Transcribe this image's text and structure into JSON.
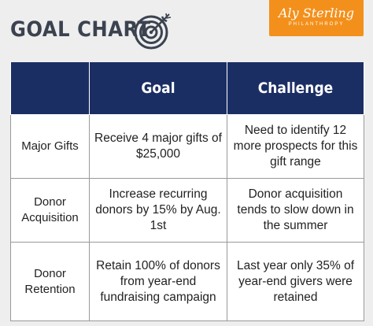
{
  "header": {
    "title": "GOAL CHART",
    "icon": "target-icon",
    "logo": {
      "name": "Aly Sterling",
      "subtitle": "PHILANTHROPY",
      "color": "#f3901b"
    }
  },
  "table": {
    "header_color": "#1b2e64",
    "columns": [
      "",
      "Goal",
      "Challenge"
    ],
    "rows": [
      {
        "label": "Major Gifts",
        "goal": "Receive 4 major gifts of $25,000",
        "challenge": "Need to identify 12 more prospects for this gift range"
      },
      {
        "label": "Donor Acquisition",
        "goal": "Increase recurring donors by 15% by Aug. 1st",
        "challenge": "Donor acquisition tends to slow down in the summer"
      },
      {
        "label": "Donor Retention",
        "goal": "Retain 100% of donors from year-end fundraising campaign",
        "challenge": "Last year only 35% of year-end givers were retained"
      }
    ]
  }
}
